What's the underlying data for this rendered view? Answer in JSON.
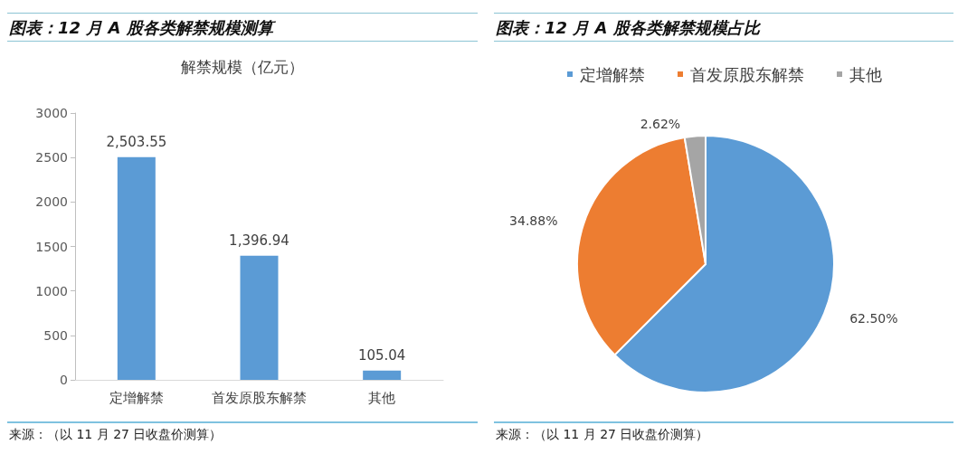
{
  "chart_data": [
    {
      "type": "bar",
      "title": "图表：12 月 A 股各类解禁规模测算",
      "subtitle": "解禁规模（亿元）",
      "categories": [
        "定增解禁",
        "首发原股东解禁",
        "其他"
      ],
      "values": [
        2503.55,
        1396.94,
        105.04
      ],
      "color": "#5b9bd5",
      "value_labels": [
        "2,503.55",
        "1,396.94",
        "105.04"
      ],
      "ylim": [
        0,
        3000
      ],
      "yticks": [
        0,
        500,
        1000,
        1500,
        2000,
        2500,
        3000
      ],
      "annotations": [
        "来源：（以 11 月 27 日收盘价测算）"
      ]
    },
    {
      "type": "pie",
      "title": "图表：12 月 A 股各类解禁规模占比",
      "categories": [
        "定增解禁",
        "首发原股东解禁",
        "其他"
      ],
      "values": [
        62.5,
        34.88,
        2.62
      ],
      "colors": [
        "#5b9bd5",
        "#ed7d31",
        "#a5a5a5"
      ],
      "value_labels": [
        "62.50%",
        "34.88%",
        "2.62%"
      ],
      "legend": "top",
      "annotations": [
        "来源：（以 11 月 27 日收盘价测算）"
      ]
    }
  ]
}
